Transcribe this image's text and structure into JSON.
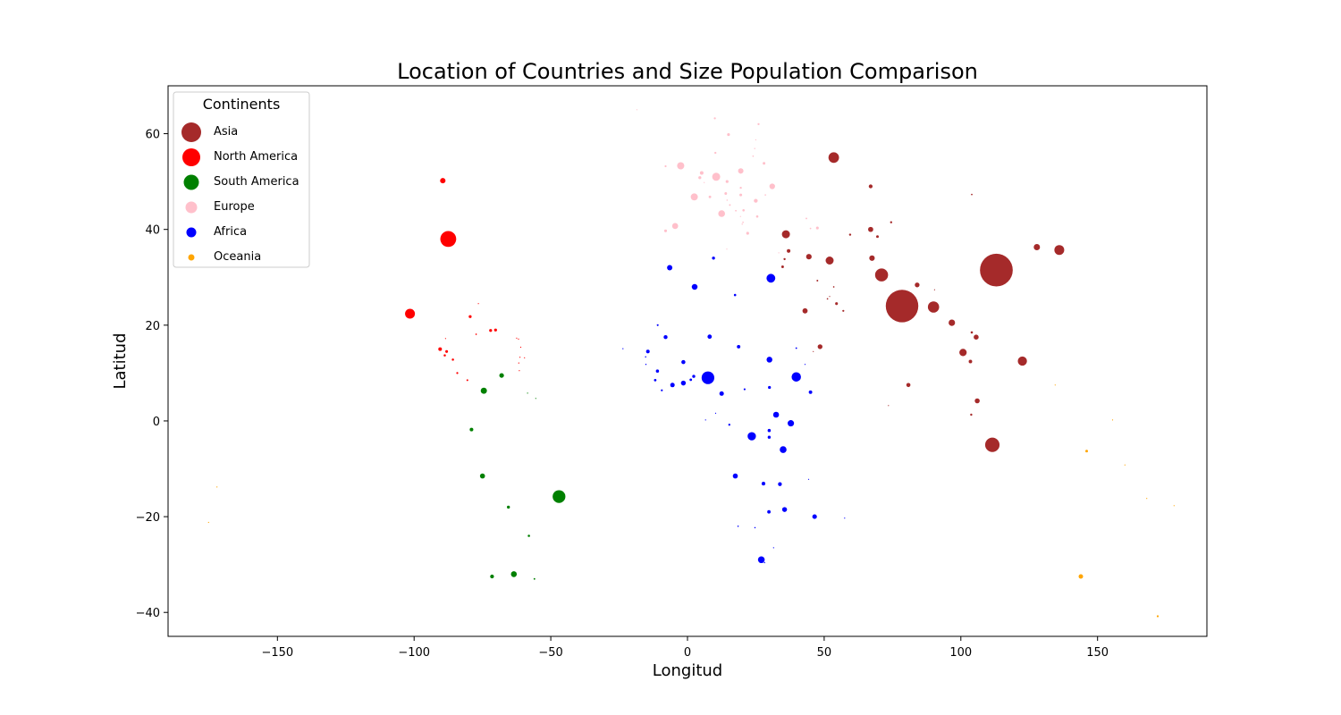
{
  "chart_data": {
    "type": "scatter",
    "title": "Location of Countries and Size Population Comparison",
    "xlabel": "Longitud",
    "ylabel": "Latitud",
    "xlim": [
      -190,
      190
    ],
    "ylim": [
      -45,
      70
    ],
    "xticks": [
      -150,
      -100,
      -50,
      0,
      50,
      100,
      150
    ],
    "yticks": [
      -40,
      -20,
      0,
      20,
      40,
      60
    ],
    "grid": false,
    "legend": {
      "title": "Continents",
      "placement": "top-left"
    },
    "series": [
      {
        "name": "Asia",
        "color": "#a52a2a",
        "points": [
          [
            113,
            31.5,
            1400
          ],
          [
            78.5,
            24,
            1380
          ],
          [
            53.5,
            55,
            145
          ],
          [
            136,
            35.7,
            126
          ],
          [
            122.5,
            12.5,
            110
          ],
          [
            111.5,
            -5,
            270
          ],
          [
            71,
            30.5,
            220
          ],
          [
            52,
            33.5,
            84
          ],
          [
            36,
            39,
            84
          ],
          [
            100.8,
            14.3,
            70
          ],
          [
            105.6,
            17.5,
            32
          ],
          [
            106,
            4.2,
            32
          ],
          [
            90,
            23.8,
            165
          ],
          [
            96.7,
            20.5,
            54
          ],
          [
            127.8,
            36.3,
            51
          ],
          [
            67.5,
            34,
            39
          ],
          [
            44.4,
            34.3,
            40
          ],
          [
            67,
            49,
            19
          ],
          [
            37,
            35.5,
            17
          ],
          [
            35.5,
            33.8,
            6
          ],
          [
            34.8,
            32.2,
            9
          ],
          [
            43,
            23,
            35
          ],
          [
            47.5,
            29.3,
            4
          ],
          [
            51.2,
            25.5,
            3
          ],
          [
            54.5,
            24.5,
            10
          ],
          [
            57,
            23,
            5
          ],
          [
            48.5,
            15.5,
            30
          ],
          [
            53.5,
            28,
            3
          ],
          [
            59.5,
            38.9,
            6
          ],
          [
            69.5,
            38.5,
            9
          ],
          [
            67,
            40,
            34
          ],
          [
            74.5,
            41.5,
            6
          ],
          [
            104,
            47.3,
            3
          ],
          [
            104,
            18.5,
            7
          ],
          [
            103.8,
            1.3,
            6
          ],
          [
            103.5,
            12.4,
            16
          ],
          [
            80.8,
            7.5,
            22
          ],
          [
            73.5,
            3.2,
            0.5
          ],
          [
            84,
            28.4,
            29
          ],
          [
            90.4,
            27.4,
            0.8
          ],
          [
            46,
            14.5,
            1
          ],
          [
            52,
            26,
            1.5
          ]
        ]
      },
      {
        "name": "North America",
        "color": "#ff0000",
        "points": [
          [
            -87.5,
            38,
            330
          ],
          [
            -89.5,
            50.2,
            38
          ],
          [
            -101.5,
            22.4,
            128
          ],
          [
            -79.5,
            21.8,
            11
          ],
          [
            -72,
            18.9,
            11
          ],
          [
            -70.2,
            19,
            11
          ],
          [
            -90.5,
            15,
            17
          ],
          [
            -88.8,
            13.7,
            6.5
          ],
          [
            -88.1,
            14.5,
            10
          ],
          [
            -85.8,
            12.8,
            6.6
          ],
          [
            -84.2,
            10,
            5
          ],
          [
            -80.5,
            8.5,
            4.3
          ],
          [
            -77.3,
            18.1,
            2.9
          ],
          [
            -76.5,
            24.5,
            0.4
          ],
          [
            -88.5,
            17.2,
            0.4
          ],
          [
            -61.5,
            10.5,
            1.4
          ],
          [
            -62.5,
            17.3,
            0.1
          ],
          [
            -61,
            15.4,
            0.1
          ],
          [
            -61.3,
            13.3,
            0.1
          ],
          [
            -61.7,
            12.1,
            0.1
          ],
          [
            -59.6,
            13.2,
            0.3
          ],
          [
            -61.8,
            17.1,
            0.1
          ]
        ]
      },
      {
        "name": "South America",
        "color": "#008000",
        "points": [
          [
            -47,
            -15.8,
            212
          ],
          [
            -74.5,
            6.3,
            50
          ],
          [
            -68,
            9.5,
            28
          ],
          [
            -75,
            -11.5,
            33
          ],
          [
            -79,
            -1.8,
            17
          ],
          [
            -65.5,
            -18,
            12
          ],
          [
            -58,
            -24,
            7
          ],
          [
            -71.5,
            -32.5,
            19
          ],
          [
            -63.5,
            -32,
            45
          ],
          [
            -56,
            -33,
            3.5
          ],
          [
            -58.5,
            5.8,
            0.8
          ],
          [
            -55.5,
            4.7,
            0.6
          ]
        ]
      },
      {
        "name": "Europe",
        "color": "#ffc0cb",
        "points": [
          [
            10.5,
            51,
            84
          ],
          [
            -2.5,
            53.3,
            67
          ],
          [
            2.5,
            46.8,
            65
          ],
          [
            12.5,
            43.3,
            60
          ],
          [
            -4.5,
            40.7,
            47
          ],
          [
            19.5,
            52.2,
            38
          ],
          [
            25,
            46,
            19
          ],
          [
            31,
            49,
            41
          ],
          [
            5.2,
            51.8,
            17
          ],
          [
            4.5,
            50.8,
            11.5
          ],
          [
            14.5,
            50,
            10.5
          ],
          [
            19.5,
            47.2,
            9.7
          ],
          [
            22,
            39.2,
            10.5
          ],
          [
            -8,
            39.7,
            10.3
          ],
          [
            15,
            59.8,
            10.4
          ],
          [
            25.5,
            42.7,
            7
          ],
          [
            8.2,
            46.8,
            8.6
          ],
          [
            14,
            47.5,
            9
          ],
          [
            20.5,
            44,
            7
          ],
          [
            10.2,
            56,
            5.8
          ],
          [
            26,
            62,
            5.5
          ],
          [
            10,
            63.2,
            5.4
          ],
          [
            -8,
            53.2,
            5
          ],
          [
            19.5,
            48.7,
            5.5
          ],
          [
            28,
            53.8,
            9.4
          ],
          [
            15.5,
            45.1,
            4
          ],
          [
            20.3,
            41.5,
            2.9
          ],
          [
            24,
            55.3,
            2.8
          ],
          [
            25,
            58.7,
            1.3
          ],
          [
            24.6,
            56.9,
            1.9
          ],
          [
            14.5,
            46.1,
            2.1
          ],
          [
            28.5,
            47.2,
            2.6
          ],
          [
            20,
            41.1,
            2.1
          ],
          [
            19.4,
            42.7,
            0.6
          ],
          [
            17.7,
            43.9,
            3.3
          ],
          [
            -18.5,
            65,
            0.4
          ],
          [
            6.1,
            49.8,
            0.6
          ],
          [
            14.4,
            35.9,
            0.5
          ],
          [
            33.4,
            35.1,
            1.2
          ],
          [
            45,
            40.2,
            3
          ],
          [
            43.5,
            42.3,
            3.7
          ],
          [
            47.5,
            40.3,
            10
          ]
        ]
      },
      {
        "name": "Africa",
        "color": "#0000ff",
        "points": [
          [
            7.5,
            9,
            210
          ],
          [
            30.5,
            29.8,
            100
          ],
          [
            39.8,
            9.2,
            115
          ],
          [
            23.5,
            -3.2,
            90
          ],
          [
            35,
            -6,
            60
          ],
          [
            27,
            -29,
            59
          ],
          [
            37.8,
            -0.5,
            53
          ],
          [
            32.4,
            1.3,
            45
          ],
          [
            2.6,
            28,
            44
          ],
          [
            30,
            12.8,
            44
          ],
          [
            -6.5,
            32,
            37
          ],
          [
            17.5,
            -11.5,
            33
          ],
          [
            -1.5,
            7.9,
            31
          ],
          [
            35.5,
            -18.5,
            31
          ],
          [
            46.5,
            -20,
            27
          ],
          [
            12.5,
            5.7,
            26
          ],
          [
            -5.5,
            7.5,
            26
          ],
          [
            8.1,
            17.6,
            24
          ],
          [
            -1.5,
            12.3,
            21
          ],
          [
            -8,
            17.5,
            20
          ],
          [
            33.8,
            -13.2,
            19
          ],
          [
            27.8,
            -13.1,
            18
          ],
          [
            29.8,
            -19,
            15
          ],
          [
            -14.5,
            14.5,
            17
          ],
          [
            18.7,
            15.5,
            16
          ],
          [
            45,
            6,
            16
          ],
          [
            -11,
            10.4,
            13
          ],
          [
            29.9,
            -2,
            13
          ],
          [
            2.3,
            9.3,
            12
          ],
          [
            29.9,
            -3.4,
            12
          ],
          [
            9.5,
            34,
            12
          ],
          [
            30,
            7,
            11
          ],
          [
            1.2,
            8.6,
            8.3
          ],
          [
            -11.8,
            8.5,
            8
          ],
          [
            17.4,
            26.3,
            6.9
          ],
          [
            15.3,
            -0.8,
            5.5
          ],
          [
            -9.4,
            6.4,
            5
          ],
          [
            -10.9,
            20,
            4.6
          ],
          [
            20.9,
            6.6,
            4.8
          ],
          [
            18.5,
            -22,
            2.5
          ],
          [
            24.7,
            -22.3,
            2.4
          ],
          [
            28.2,
            -29.6,
            2.1
          ],
          [
            -15.3,
            13.4,
            2.4
          ],
          [
            -15.2,
            11.8,
            2
          ],
          [
            10.3,
            1.6,
            1.4
          ],
          [
            31.5,
            -26.5,
            1.2
          ],
          [
            43,
            11.8,
            1
          ],
          [
            57.5,
            -20.3,
            1.3
          ],
          [
            39.8,
            15.2,
            3.5
          ],
          [
            44.3,
            -12.2,
            0.9
          ],
          [
            -23.6,
            15.1,
            0.6
          ],
          [
            6.6,
            0.2,
            0.2
          ]
        ]
      },
      {
        "name": "Oceania",
        "color": "#ffa500",
        "points": [
          [
            143.9,
            -32.5,
            26
          ],
          [
            172,
            -40.8,
            5
          ],
          [
            146,
            -6.3,
            9
          ],
          [
            160,
            -9.2,
            0.7
          ],
          [
            168,
            -16.2,
            0.3
          ],
          [
            178,
            -17.7,
            0.9
          ],
          [
            -172.1,
            -13.8,
            0.2
          ],
          [
            -175.2,
            -21.2,
            0.1
          ],
          [
            155.5,
            0.2,
            0.1
          ],
          [
            134.5,
            7.5,
            0.02
          ]
        ]
      }
    ]
  }
}
